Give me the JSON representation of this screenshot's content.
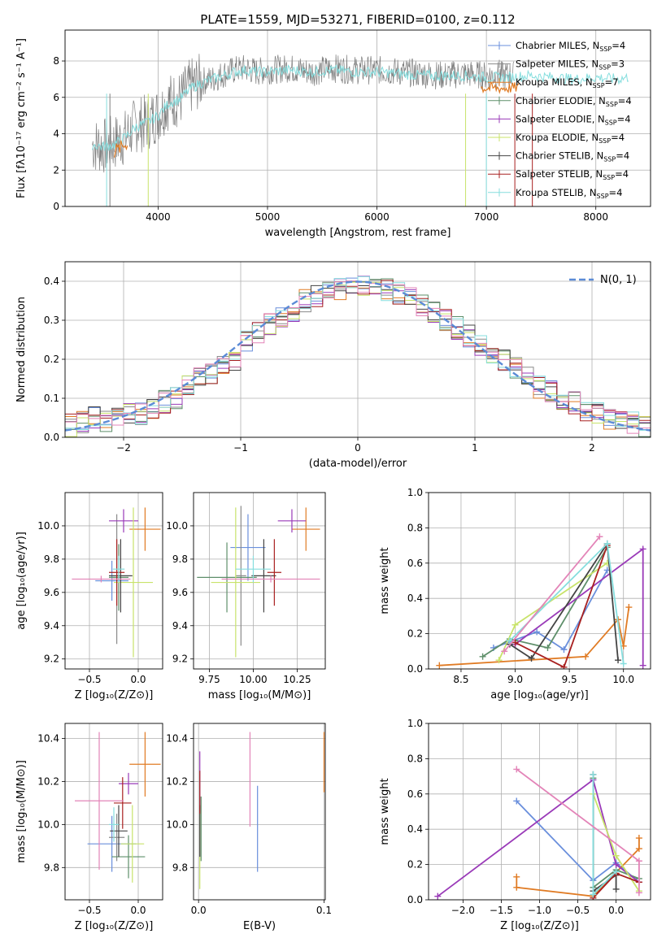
{
  "colors": {
    "chabrier_miles": "#6a8fdc",
    "salpeter_miles": "#8a8a8a",
    "kroupa_miles": "#e07b24",
    "chabrier_elodie": "#5e8f6a",
    "salpeter_elodie": "#9a3ab8",
    "kroupa_elodie": "#c8e36a",
    "chabrier_stelib": "#444444",
    "salpeter_stelib": "#a82020",
    "kroupa_stelib": "#86dede",
    "normal": "#5b8bd6",
    "pink": "#e384b8"
  },
  "chart_data": [
    {
      "id": "spectrum",
      "type": "line",
      "title": "PLATE=1559, MJD=53271, FIBERID=0100, z=0.112",
      "xlabel": "wavelength [Angstrom, rest frame]",
      "ylabel": "Flux [fλ10⁻¹⁷ erg cm⁻² s⁻¹ A⁻¹]",
      "xlim": [
        3150,
        8500
      ],
      "ylim": [
        0,
        9.7
      ],
      "xticks": [
        4000,
        5000,
        6000,
        7000,
        8000
      ],
      "yticks": [
        0,
        2,
        4,
        6,
        8
      ],
      "x": [
        3400,
        3500,
        3600,
        3700,
        3800,
        3900,
        4000,
        4100,
        4200,
        4300,
        4400,
        4500,
        4600,
        4700,
        4800,
        4900,
        5000,
        5200,
        5400,
        5600,
        5800,
        6000,
        6200,
        6400,
        6600,
        6800,
        7000,
        7200,
        7400,
        7600,
        7800,
        8000,
        8200,
        8300
      ],
      "data_flux": [
        3.4,
        3.3,
        3.5,
        3.8,
        4.5,
        4.6,
        5.1,
        5.8,
        5.9,
        6.6,
        6.9,
        7.0,
        7.3,
        7.5,
        7.6,
        7.4,
        7.5,
        7.6,
        7.4,
        7.6,
        7.5,
        7.5,
        7.4,
        7.3,
        7.2,
        7.3,
        7.2,
        7.2,
        7.3,
        7.2,
        7.1,
        7.2,
        7.1,
        7.2
      ],
      "model_flux": [
        3.4,
        3.3,
        3.4,
        3.8,
        4.4,
        4.6,
        5.0,
        5.7,
        5.9,
        6.5,
        6.8,
        7.0,
        7.2,
        7.4,
        7.5,
        7.4,
        7.4,
        7.5,
        7.4,
        7.5,
        7.4,
        7.4,
        7.3,
        7.2,
        7.2,
        7.2,
        7.1,
        7.1,
        7.2,
        7.1,
        7.0,
        7.1,
        7.0,
        7.1
      ],
      "legend_position": "right",
      "legend": [
        "Chabrier MILES, N_SSP=4",
        "Salpeter MILES, N_SSP=3",
        "Kroupa MILES, N_SSP=7",
        "Chabrier ELODIE, N_SSP=4",
        "Salpeter ELODIE, N_SSP=4",
        "Kroupa ELODIE, N_SSP=4",
        "Chabrier STELIB, N_SSP=4",
        "Salpeter STELIB, N_SSP=4",
        "Kroupa STELIB, N_SSP=4"
      ]
    },
    {
      "id": "residuals",
      "type": "line",
      "xlabel": "(data-model)/error",
      "ylabel": "Normed distribution",
      "xlim": [
        -2.5,
        2.5
      ],
      "ylim": [
        0,
        0.45
      ],
      "xticks": [
        -2,
        -1,
        0,
        1,
        2
      ],
      "yticks": [
        0.0,
        0.1,
        0.2,
        0.3,
        0.4
      ],
      "legend_position": "top-right",
      "legend": [
        "N(0, 1)"
      ],
      "bin_centers": [
        -2.45,
        -2.35,
        -2.25,
        -2.15,
        -2.05,
        -1.95,
        -1.85,
        -1.75,
        -1.65,
        -1.55,
        -1.45,
        -1.35,
        -1.25,
        -1.15,
        -1.05,
        -0.95,
        -0.85,
        -0.75,
        -0.65,
        -0.55,
        -0.45,
        -0.35,
        -0.25,
        -0.15,
        -0.05,
        0.05,
        0.15,
        0.25,
        0.35,
        0.45,
        0.55,
        0.65,
        0.75,
        0.85,
        0.95,
        1.05,
        1.15,
        1.25,
        1.35,
        1.45,
        1.55,
        1.65,
        1.75,
        1.85,
        1.95,
        2.05,
        2.15,
        2.25,
        2.35,
        2.45
      ],
      "histogram_mean": [
        0.03,
        0.04,
        0.05,
        0.04,
        0.05,
        0.06,
        0.06,
        0.07,
        0.09,
        0.1,
        0.13,
        0.15,
        0.16,
        0.18,
        0.2,
        0.25,
        0.27,
        0.29,
        0.31,
        0.32,
        0.35,
        0.36,
        0.37,
        0.38,
        0.39,
        0.39,
        0.38,
        0.38,
        0.37,
        0.36,
        0.34,
        0.32,
        0.3,
        0.28,
        0.26,
        0.24,
        0.22,
        0.2,
        0.18,
        0.16,
        0.13,
        0.12,
        0.1,
        0.09,
        0.07,
        0.06,
        0.05,
        0.05,
        0.04,
        0.03
      ]
    },
    {
      "id": "age_vs_z",
      "type": "scatter",
      "xlabel": "Z [log₁₀(Z/Z⊙)]",
      "ylabel": "age  [log₁₀(age/yr)]",
      "xlim": [
        -0.75,
        0.25
      ],
      "ylim": [
        9.14,
        10.2
      ],
      "xticks": [
        -0.5,
        0.0
      ],
      "yticks": [
        9.2,
        9.4,
        9.6,
        9.8,
        10.0
      ],
      "points": [
        {
          "key": "chabrier_miles",
          "x": -0.27,
          "y": 9.67,
          "xerr": 0.17,
          "yerr": 0.12
        },
        {
          "key": "salpeter_miles",
          "x": -0.22,
          "y": 9.68,
          "xerr": 0.05,
          "yerr": 0.39
        },
        {
          "key": "kroupa_miles",
          "x": 0.07,
          "y": 9.98,
          "xerr": 0.16,
          "yerr": 0.13
        },
        {
          "key": "chabrier_elodie",
          "x": -0.2,
          "y": 9.69,
          "xerr": 0.1,
          "yerr": 0.2
        },
        {
          "key": "salpeter_elodie",
          "x": -0.15,
          "y": 10.03,
          "xerr": 0.15,
          "yerr": 0.07
        },
        {
          "key": "kroupa_elodie",
          "x": -0.05,
          "y": 9.66,
          "xerr": 0.2,
          "yerr": 0.45
        },
        {
          "key": "chabrier_stelib",
          "x": -0.18,
          "y": 9.7,
          "xerr": 0.12,
          "yerr": 0.22
        },
        {
          "key": "salpeter_stelib",
          "x": -0.22,
          "y": 9.72,
          "xerr": 0.08,
          "yerr": 0.2
        },
        {
          "key": "kroupa_stelib",
          "x": -0.2,
          "y": 9.74,
          "xerr": 0.06,
          "yerr": 0.08
        },
        {
          "key": "pink",
          "x": -0.38,
          "y": 9.68,
          "xerr": 0.3,
          "yerr": 0.02
        }
      ]
    },
    {
      "id": "age_vs_mass",
      "type": "scatter",
      "xlabel": "mass [log₁₀(M/M⊙)]",
      "xlim": [
        9.66,
        10.41
      ],
      "ylim": [
        9.14,
        10.2
      ],
      "xticks": [
        9.75,
        10.0,
        10.25
      ],
      "xticklabels": [
        "9.75",
        "10.00",
        "10.25"
      ],
      "yticks": [
        9.2,
        9.4,
        9.6,
        9.8,
        10.0
      ],
      "points": [
        {
          "key": "chabrier_miles",
          "x": 9.97,
          "y": 9.87,
          "xerr": 0.1,
          "yerr": 0.2
        },
        {
          "key": "salpeter_miles",
          "x": 9.93,
          "y": 9.7,
          "xerr": 0.03,
          "yerr": 0.42
        },
        {
          "key": "kroupa_miles",
          "x": 10.3,
          "y": 9.98,
          "xerr": 0.08,
          "yerr": 0.13
        },
        {
          "key": "chabrier_elodie",
          "x": 9.85,
          "y": 9.69,
          "xerr": 0.17,
          "yerr": 0.21
        },
        {
          "key": "salpeter_elodie",
          "x": 10.22,
          "y": 10.03,
          "xerr": 0.08,
          "yerr": 0.07
        },
        {
          "key": "kroupa_elodie",
          "x": 9.9,
          "y": 9.66,
          "xerr": 0.14,
          "yerr": 0.45
        },
        {
          "key": "chabrier_stelib",
          "x": 10.06,
          "y": 9.7,
          "xerr": 0.07,
          "yerr": 0.22
        },
        {
          "key": "salpeter_stelib",
          "x": 10.12,
          "y": 9.72,
          "xerr": 0.04,
          "yerr": 0.2
        },
        {
          "key": "kroupa_stelib",
          "x": 10.0,
          "y": 9.74,
          "xerr": 0.1,
          "yerr": 0.08
        },
        {
          "key": "pink",
          "x": 10.1,
          "y": 9.68,
          "xerr": 0.28,
          "yerr": 0.02
        }
      ]
    },
    {
      "id": "weight_vs_age",
      "type": "line",
      "xlabel": "age  [log₁₀(age/yr)]",
      "ylabel": "mass weight",
      "xlim": [
        8.2,
        10.25
      ],
      "ylim": [
        0,
        1.0
      ],
      "xticks": [
        8.5,
        9.0,
        9.5,
        10.0
      ],
      "yticks": [
        0.0,
        0.2,
        0.4,
        0.6,
        0.8,
        1.0
      ],
      "series": [
        {
          "key": "chabrier_miles",
          "x": [
            8.8,
            9.2,
            9.45,
            9.85
          ],
          "y": [
            0.12,
            0.21,
            0.11,
            0.56
          ]
        },
        {
          "key": "kroupa_miles",
          "x": [
            8.3,
            9.65,
            9.95,
            10.0,
            10.05
          ],
          "y": [
            0.02,
            0.07,
            0.28,
            0.13,
            0.35
          ]
        },
        {
          "key": "chabrier_elodie",
          "x": [
            8.7,
            8.95,
            9.3,
            9.85
          ],
          "y": [
            0.07,
            0.17,
            0.12,
            0.69
          ]
        },
        {
          "key": "salpeter_elodie",
          "x": [
            9.0,
            10.18,
            10.18
          ],
          "y": [
            0.14,
            0.68,
            0.02
          ]
        },
        {
          "key": "kroupa_elodie",
          "x": [
            8.85,
            9.0,
            9.85
          ],
          "y": [
            0.05,
            0.25,
            0.6
          ]
        },
        {
          "key": "chabrier_stelib",
          "x": [
            8.95,
            9.15,
            9.85,
            9.95
          ],
          "y": [
            0.14,
            0.06,
            0.71,
            0.05
          ]
        },
        {
          "key": "salpeter_stelib",
          "x": [
            9.0,
            9.45,
            9.85
          ],
          "y": [
            0.15,
            0.01,
            0.7
          ]
        },
        {
          "key": "kroupa_stelib",
          "x": [
            8.95,
            9.85,
            10.0
          ],
          "y": [
            0.16,
            0.71,
            0.03
          ]
        },
        {
          "key": "pink",
          "x": [
            8.9,
            9.78
          ],
          "y": [
            0.1,
            0.75
          ]
        }
      ]
    },
    {
      "id": "mass_vs_z",
      "type": "scatter",
      "xlabel": "Z [log₁₀(Z/Z⊙)]",
      "ylabel": "mass [log₁₀(M/M⊙)]",
      "xlim": [
        -0.75,
        0.25
      ],
      "ylim": [
        9.65,
        10.47
      ],
      "xticks": [
        -0.5,
        0.0
      ],
      "yticks": [
        9.8,
        10.0,
        10.2,
        10.4
      ],
      "points": [
        {
          "key": "chabrier_miles",
          "x": -0.27,
          "y": 9.91,
          "xerr": 0.25,
          "yerr": 0.13
        },
        {
          "key": "salpeter_miles",
          "x": -0.22,
          "y": 9.94,
          "xerr": 0.08,
          "yerr": 0.11
        },
        {
          "key": "kroupa_miles",
          "x": 0.07,
          "y": 10.28,
          "xerr": 0.16,
          "yerr": 0.15
        },
        {
          "key": "chabrier_elodie",
          "x": -0.1,
          "y": 9.85,
          "xerr": 0.17,
          "yerr": 0.1
        },
        {
          "key": "salpeter_elodie",
          "x": -0.1,
          "y": 10.19,
          "xerr": 0.1,
          "yerr": 0.05
        },
        {
          "key": "kroupa_elodie",
          "x": -0.06,
          "y": 9.91,
          "xerr": 0.12,
          "yerr": 0.18
        },
        {
          "key": "chabrier_stelib",
          "x": -0.2,
          "y": 9.97,
          "xerr": 0.09,
          "yerr": 0.12
        },
        {
          "key": "salpeter_stelib",
          "x": -0.16,
          "y": 10.1,
          "xerr": 0.09,
          "yerr": 0.12
        },
        {
          "key": "kroupa_stelib",
          "x": -0.25,
          "y": 10.0,
          "xerr": 0.05,
          "yerr": 0.08
        },
        {
          "key": "pink",
          "x": -0.4,
          "y": 10.11,
          "xerr": 0.25,
          "yerr": 0.32
        }
      ]
    },
    {
      "id": "mass_vs_ebv",
      "type": "scatter",
      "xlabel": "E(B-V)",
      "xlim": [
        -0.004,
        0.101
      ],
      "ylim": [
        9.65,
        10.47
      ],
      "xticks": [
        0.0,
        0.1
      ],
      "yticks": [
        9.8,
        10.0,
        10.2,
        10.4
      ],
      "points": [
        {
          "key": "chabrier_miles",
          "x": 0.047,
          "y": 9.98,
          "yerr": 0.2
        },
        {
          "key": "kroupa_miles",
          "x": 0.1,
          "y": 10.29,
          "yerr": 0.14
        },
        {
          "key": "salpeter_elodie",
          "x": 0.001,
          "y": 10.2,
          "yerr": 0.14
        },
        {
          "key": "kroupa_elodie",
          "x": 0.001,
          "y": 9.88,
          "yerr": 0.18
        },
        {
          "key": "chabrier_stelib",
          "x": 0.001,
          "y": 9.97,
          "yerr": 0.12
        },
        {
          "key": "salpeter_stelib",
          "x": 0.001,
          "y": 10.15,
          "yerr": 0.1
        },
        {
          "key": "chabrier_elodie",
          "x": 0.002,
          "y": 9.98,
          "yerr": 0.15
        },
        {
          "key": "pink",
          "x": 0.041,
          "y": 10.21,
          "yerr": 0.22
        }
      ]
    },
    {
      "id": "weight_vs_z",
      "type": "line",
      "xlabel": "Z [log₁₀(Z/Z⊙)]",
      "ylabel": "mass weight",
      "xlim": [
        -2.45,
        0.45
      ],
      "ylim": [
        0,
        1.0
      ],
      "xticks": [
        -2.0,
        -1.5,
        -1.0,
        -0.5,
        0.0
      ],
      "yticks": [
        0.0,
        0.2,
        0.4,
        0.6,
        0.8,
        1.0
      ],
      "series": [
        {
          "key": "chabrier_miles",
          "x": [
            -1.3,
            -0.3,
            0.0,
            0.3
          ],
          "y": [
            0.56,
            0.11,
            0.21,
            0.1
          ]
        },
        {
          "key": "kroupa_miles",
          "x": [
            -1.3,
            -1.3,
            -0.3,
            0.3,
            0.3
          ],
          "y": [
            0.13,
            0.07,
            0.02,
            0.29,
            0.35
          ]
        },
        {
          "key": "chabrier_elodie",
          "x": [
            -0.3,
            -0.3,
            0.0,
            0.3
          ],
          "y": [
            0.69,
            0.07,
            0.17,
            0.12
          ]
        },
        {
          "key": "salpeter_elodie",
          "x": [
            -2.33,
            -0.3,
            0.0,
            0.3
          ],
          "y": [
            0.02,
            0.68,
            0.2,
            0.1
          ]
        },
        {
          "key": "kroupa_elodie",
          "x": [
            -0.3,
            0.0,
            0.3
          ],
          "y": [
            0.6,
            0.25,
            0.05
          ]
        },
        {
          "key": "chabrier_stelib",
          "x": [
            -0.3,
            -0.3,
            0.0,
            0.0
          ],
          "y": [
            0.71,
            0.05,
            0.14,
            0.06
          ]
        },
        {
          "key": "salpeter_stelib",
          "x": [
            -0.3,
            0.0,
            0.3
          ],
          "y": [
            0.01,
            0.15,
            0.1
          ]
        },
        {
          "key": "kroupa_stelib",
          "x": [
            -0.3,
            -0.3,
            0.0
          ],
          "y": [
            0.71,
            0.03,
            0.16
          ]
        },
        {
          "key": "pink",
          "x": [
            -1.3,
            0.3,
            0.3
          ],
          "y": [
            0.74,
            0.22,
            0.04
          ]
        }
      ]
    }
  ]
}
